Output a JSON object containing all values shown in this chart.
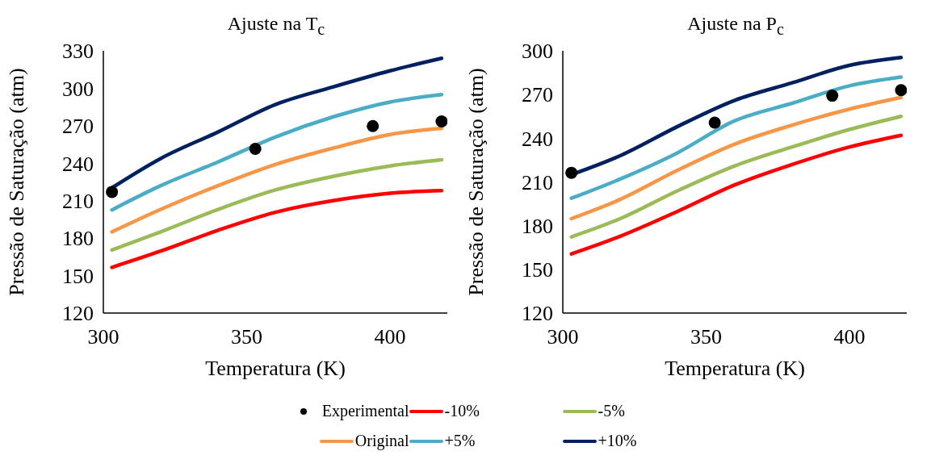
{
  "chart_data": [
    {
      "type": "line",
      "title": "Ajuste na T$_{c}$",
      "xlabel": "Temperatura (K)",
      "ylabel": "Pressão de Saturação (atm)",
      "x": [
        303,
        320,
        340,
        360,
        380,
        400,
        418
      ],
      "xlim": [
        300,
        420
      ],
      "xticks": [
        300,
        350,
        400
      ],
      "ylim": [
        120,
        330
      ],
      "yticks": [
        120,
        150,
        180,
        210,
        240,
        270,
        300,
        330
      ],
      "grid": false,
      "legend": "bottom",
      "line_style": "solid",
      "series": [
        {
          "name": "Experimental",
          "type": "scatter",
          "marker": "circle",
          "color": "#000000",
          "x": [
            303,
            353,
            394,
            418
          ],
          "values": [
            217,
            251.5,
            269.7,
            273.5
          ]
        },
        {
          "name": "-10%",
          "color": "#ff0000",
          "values": [
            156.6,
            169.6,
            186.3,
            200.7,
            210,
            216,
            218
          ]
        },
        {
          "name": "-5%",
          "color": "#9bbb59",
          "values": [
            170.5,
            185,
            203,
            218.6,
            229.4,
            237.8,
            242.8
          ]
        },
        {
          "name": "Original",
          "color": "#f79646",
          "values": [
            185,
            203,
            222,
            239,
            252,
            263,
            268
          ]
        },
        {
          "name": "+5%",
          "color": "#4bacc6",
          "values": [
            202.6,
            222,
            241,
            261,
            277,
            289,
            295
          ]
        },
        {
          "name": "+10%",
          "color": "#002060",
          "values": [
            220.3,
            243.8,
            265,
            287,
            301,
            314,
            324
          ]
        }
      ]
    },
    {
      "type": "line",
      "title": "Ajuste na P$_{c}$",
      "xlabel": "Temperatura (K)",
      "ylabel": "Pressão de Saturação (atm)",
      "x": [
        303,
        320,
        340,
        360,
        380,
        400,
        418
      ],
      "xlim": [
        300,
        420
      ],
      "xticks": [
        300,
        350,
        400
      ],
      "ylim": [
        120,
        300
      ],
      "yticks": [
        120,
        150,
        180,
        210,
        240,
        270,
        300
      ],
      "grid": false,
      "line_style": "solid",
      "series": [
        {
          "type": "scatter",
          "marker": "circle",
          "color": "#000000",
          "x": [
            303,
            353,
            394,
            418
          ],
          "values": [
            216.3,
            250.7,
            269.2,
            273
          ]
        },
        {
          "color": "#ff0000",
          "values": [
            160.6,
            172.7,
            189.8,
            208,
            222,
            234,
            242
          ]
        },
        {
          "color": "#9bbb59",
          "values": [
            172.3,
            184.8,
            203.9,
            221,
            234,
            246,
            255
          ]
        },
        {
          "color": "#f79646",
          "values": [
            184.8,
            198,
            218,
            236,
            249,
            260,
            268
          ]
        },
        {
          "color": "#4bacc6",
          "values": [
            198.8,
            212,
            230,
            252,
            264,
            276,
            282
          ]
        },
        {
          "color": "#002060",
          "values": [
            215,
            228,
            248,
            266,
            278,
            290,
            295.4
          ]
        }
      ]
    }
  ]
}
